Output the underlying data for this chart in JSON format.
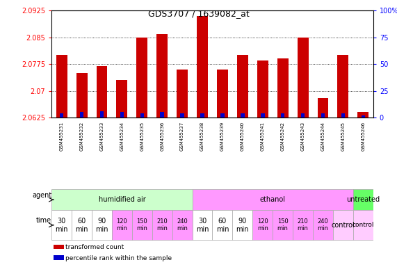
{
  "title": "GDS3707 / 1639082_at",
  "samples": [
    "GSM455231",
    "GSM455232",
    "GSM455233",
    "GSM455234",
    "GSM455235",
    "GSM455236",
    "GSM455237",
    "GSM455238",
    "GSM455239",
    "GSM455240",
    "GSM455241",
    "GSM455242",
    "GSM455243",
    "GSM455244",
    "GSM455245",
    "GSM455246"
  ],
  "transformed_count": [
    2.08,
    2.075,
    2.077,
    2.073,
    2.085,
    2.086,
    2.076,
    2.091,
    2.076,
    2.08,
    2.0785,
    2.079,
    2.085,
    2.068,
    2.08,
    2.064
  ],
  "percentile_rank": [
    4,
    5,
    6,
    5,
    4,
    5,
    4,
    4,
    4,
    4,
    4,
    4,
    4,
    4,
    4,
    2
  ],
  "ymin": 2.0625,
  "ymax": 2.0925,
  "y2min": 0,
  "y2max": 100,
  "yticks": [
    2.0625,
    2.07,
    2.0775,
    2.085,
    2.0925
  ],
  "ytick_labels": [
    "2.0625",
    "2.07",
    "2.0775",
    "2.085",
    "2.0925"
  ],
  "y2ticks": [
    0,
    25,
    50,
    75,
    100
  ],
  "y2tick_labels": [
    "0",
    "25",
    "50",
    "75",
    "100%"
  ],
  "bar_color_red": "#cc0000",
  "bar_color_blue": "#0000cc",
  "bg_color": "#ffffff",
  "agent_groups": [
    {
      "label": "humidified air",
      "start": 0,
      "end": 7,
      "color": "#ccffcc"
    },
    {
      "label": "ethanol",
      "start": 7,
      "end": 15,
      "color": "#ff99ff"
    },
    {
      "label": "untreated",
      "start": 15,
      "end": 16,
      "color": "#66ff66"
    }
  ],
  "time_labels_15": [
    "30\nmin",
    "60\nmin",
    "90\nmin",
    "120\nmin",
    "150\nmin",
    "210\nmin",
    "240\nmin",
    "30\nmin",
    "60\nmin",
    "90\nmin",
    "120\nmin",
    "150\nmin",
    "210\nmin",
    "240\nmin",
    "control"
  ],
  "time_colors_15": [
    "#ffffff",
    "#ffffff",
    "#ffffff",
    "#ff99ff",
    "#ff99ff",
    "#ff99ff",
    "#ff99ff",
    "#ffffff",
    "#ffffff",
    "#ffffff",
    "#ff99ff",
    "#ff99ff",
    "#ff99ff",
    "#ff99ff",
    "#ffccff"
  ],
  "time_fontsizes": [
    7,
    7,
    7,
    6,
    6,
    6,
    6,
    7,
    7,
    7,
    6,
    6,
    6,
    6,
    7
  ],
  "legend_items": [
    {
      "label": "transformed count",
      "color": "#cc0000"
    },
    {
      "label": "percentile rank within the sample",
      "color": "#0000cc"
    }
  ]
}
